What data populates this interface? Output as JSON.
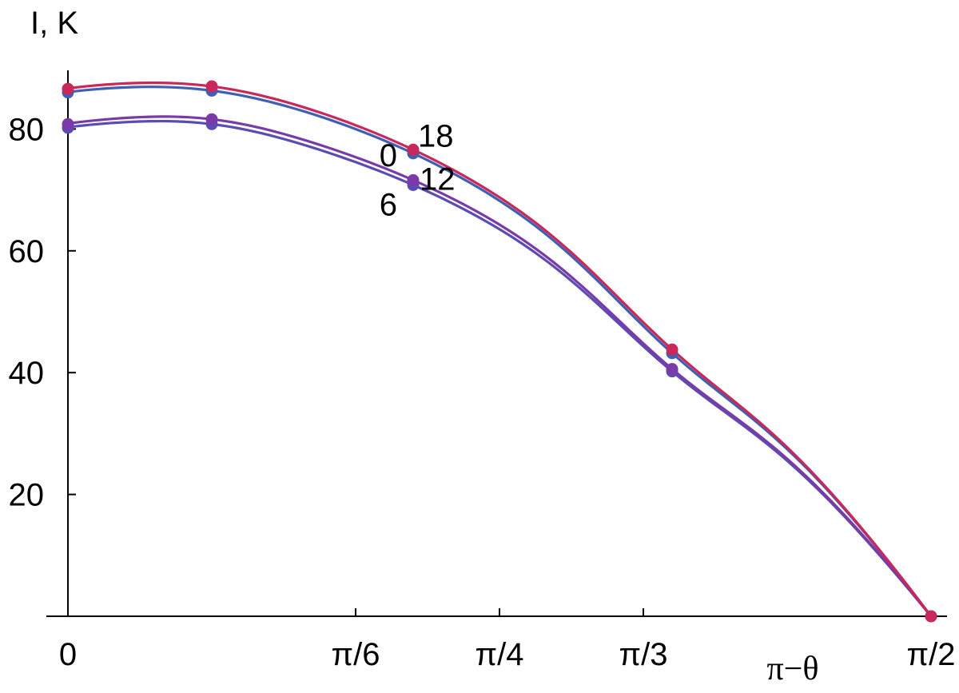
{
  "chart_data": {
    "type": "line",
    "ylabel": "I, K",
    "xlabel": "π−θ",
    "xlim": [
      0,
      1.5708
    ],
    "ylim": [
      0,
      90
    ],
    "x_ticks": [
      {
        "value": 0,
        "label": "0"
      },
      {
        "value": 0.5236,
        "label": "π/6"
      },
      {
        "value": 0.7854,
        "label": "π/4"
      },
      {
        "value": 1.0472,
        "label": "π/3"
      },
      {
        "value": 1.5708,
        "label": "π/2"
      }
    ],
    "y_ticks": [
      {
        "value": 20,
        "label": "20"
      },
      {
        "value": 40,
        "label": "40"
      },
      {
        "value": 60,
        "label": "60"
      },
      {
        "value": 80,
        "label": "80"
      }
    ],
    "grid": false,
    "series": [
      {
        "name": "0",
        "color": "#3f5fb0",
        "x": [
          0,
          0.2618,
          0.6283,
          1.0996,
          1.5708
        ],
        "y": [
          86.0,
          86.3,
          76.0,
          43.2,
          0
        ]
      },
      {
        "name": "6",
        "color": "#5a4cb0",
        "x": [
          0,
          0.2618,
          0.6283,
          1.0996,
          1.5708
        ],
        "y": [
          80.2,
          80.8,
          70.8,
          40.2,
          0
        ]
      },
      {
        "name": "12",
        "color": "#7a3aa8",
        "x": [
          0,
          0.2618,
          0.6283,
          1.0996,
          1.5708
        ],
        "y": [
          80.8,
          81.6,
          71.6,
          40.6,
          0
        ]
      },
      {
        "name": "18",
        "color": "#c8285a",
        "x": [
          0,
          0.2618,
          0.6283,
          1.0996,
          1.5708
        ],
        "y": [
          86.6,
          87.0,
          76.6,
          43.8,
          0
        ]
      }
    ]
  }
}
